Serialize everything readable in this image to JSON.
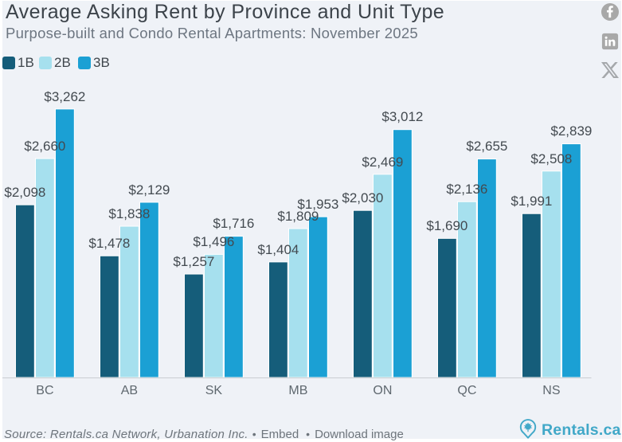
{
  "header": {
    "title": "Average Asking Rent by Province and Unit Type",
    "subtitle": "Purpose-built and Condo Rental Apartments: November 2025"
  },
  "share": {
    "icons": [
      "facebook-icon",
      "linkedin-icon",
      "x-icon"
    ],
    "color": "#a8a8a8"
  },
  "chart_data": {
    "type": "bar",
    "title": "Average Asking Rent by Province and Unit Type",
    "subtitle": "Purpose-built and Condo Rental Apartments: November 2025",
    "categories": [
      "BC",
      "AB",
      "SK",
      "MB",
      "ON",
      "QC",
      "NS"
    ],
    "series": [
      {
        "name": "1B",
        "color": "#155d7a",
        "values": [
          2098,
          1478,
          1257,
          1404,
          2030,
          1690,
          1991
        ]
      },
      {
        "name": "2B",
        "color": "#a6e0ee",
        "values": [
          2660,
          1838,
          1496,
          1809,
          2469,
          2136,
          2508
        ]
      },
      {
        "name": "3B",
        "color": "#1ba0d4",
        "values": [
          3262,
          2129,
          1716,
          1953,
          3012,
          2655,
          2839
        ]
      }
    ],
    "value_prefix": "$",
    "ylim": [
      0,
      3600
    ],
    "grid": false,
    "legend_position": "top-left",
    "data_labels": "above-bars",
    "background": "#eff2f7",
    "axis_line_color": "#c9cdd1"
  },
  "footer": {
    "source": "Source: Rentals.ca Network, Urbanation Inc.",
    "bullet": "•",
    "embed_label": "Embed",
    "download_label": "Download image",
    "brand": "Rentals.ca",
    "brand_color": "#41a8c8"
  }
}
